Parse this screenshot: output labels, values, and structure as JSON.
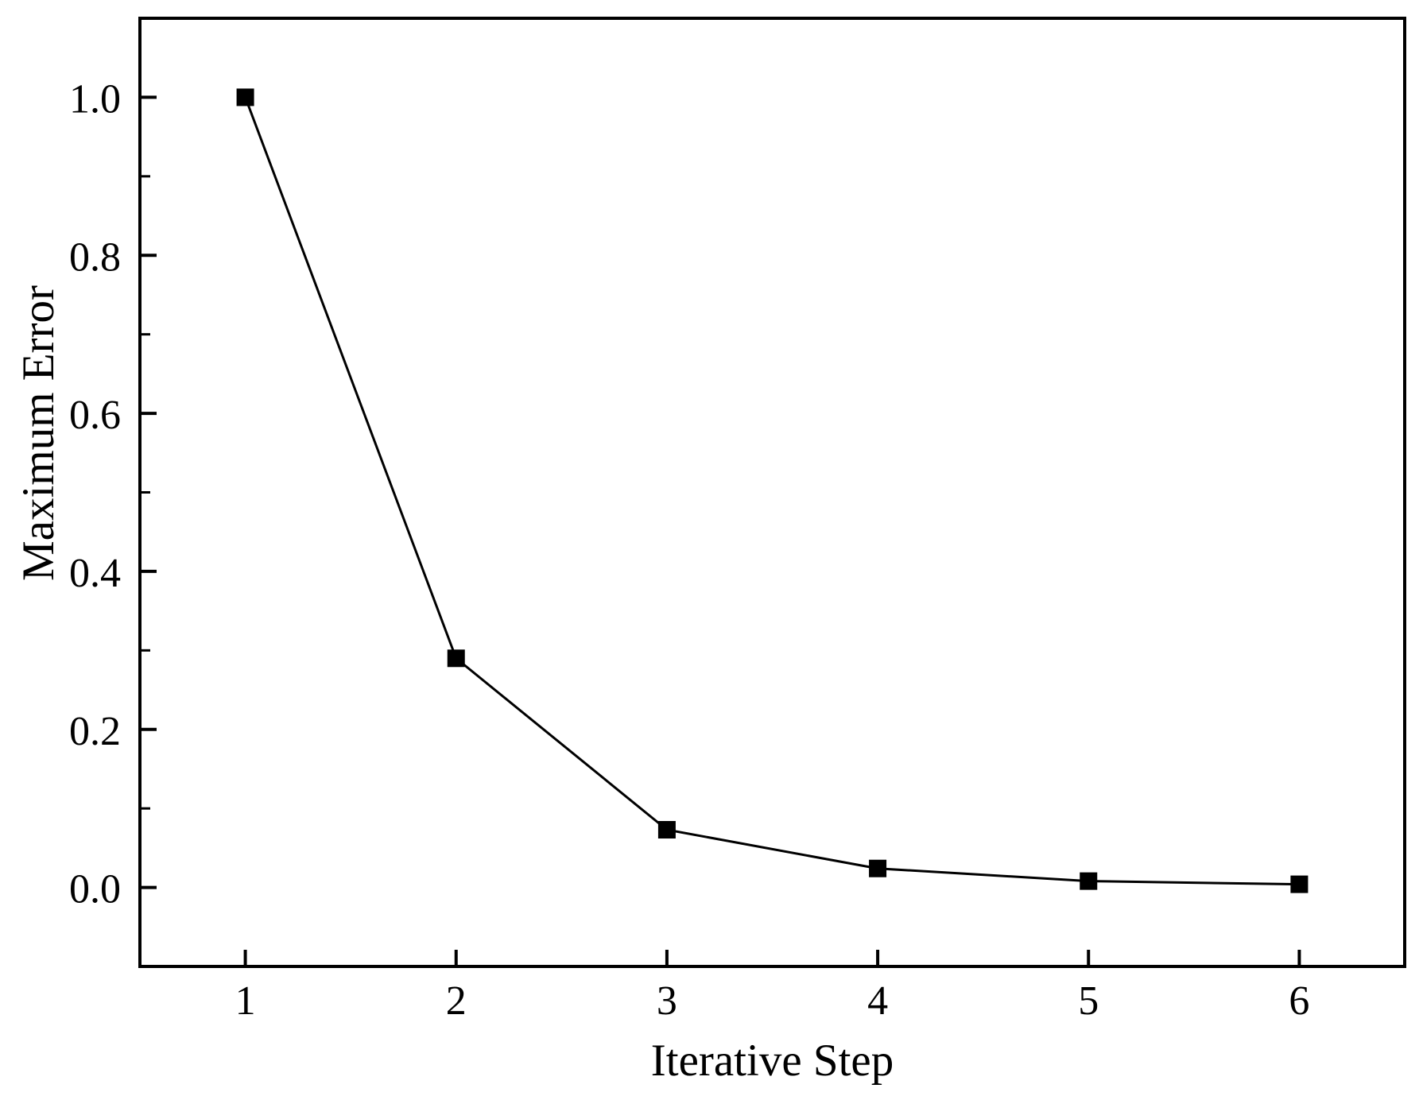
{
  "chart_data": {
    "type": "line",
    "title": "",
    "xlabel": "Iterative Step",
    "ylabel": "Maximum Error",
    "x": [
      1,
      2,
      3,
      4,
      5,
      6
    ],
    "series": [
      {
        "name": "Maximum Error",
        "values": [
          1.0,
          0.29,
          0.073,
          0.024,
          0.008,
          0.004
        ]
      }
    ],
    "xlim": [
      0.5,
      6.5
    ],
    "ylim": [
      -0.1,
      1.1
    ],
    "x_ticks": [
      1,
      2,
      3,
      4,
      5,
      6
    ],
    "x_tick_labels": [
      "1",
      "2",
      "3",
      "4",
      "5",
      "6"
    ],
    "y_ticks": [
      0.0,
      0.2,
      0.4,
      0.6,
      0.8,
      1.0
    ],
    "y_tick_labels": [
      "0.0",
      "0.2",
      "0.4",
      "0.6",
      "0.8",
      "1.0"
    ],
    "y_minor_ticks": [
      0.1,
      0.3,
      0.5,
      0.7,
      0.9
    ],
    "grid": false,
    "legend": "none",
    "marker": "filled-square",
    "marker_size_px": 22,
    "colors": {
      "line": "#000000",
      "marker": "#000000",
      "frame": "#000000",
      "text": "#000000",
      "background": "#ffffff"
    }
  }
}
